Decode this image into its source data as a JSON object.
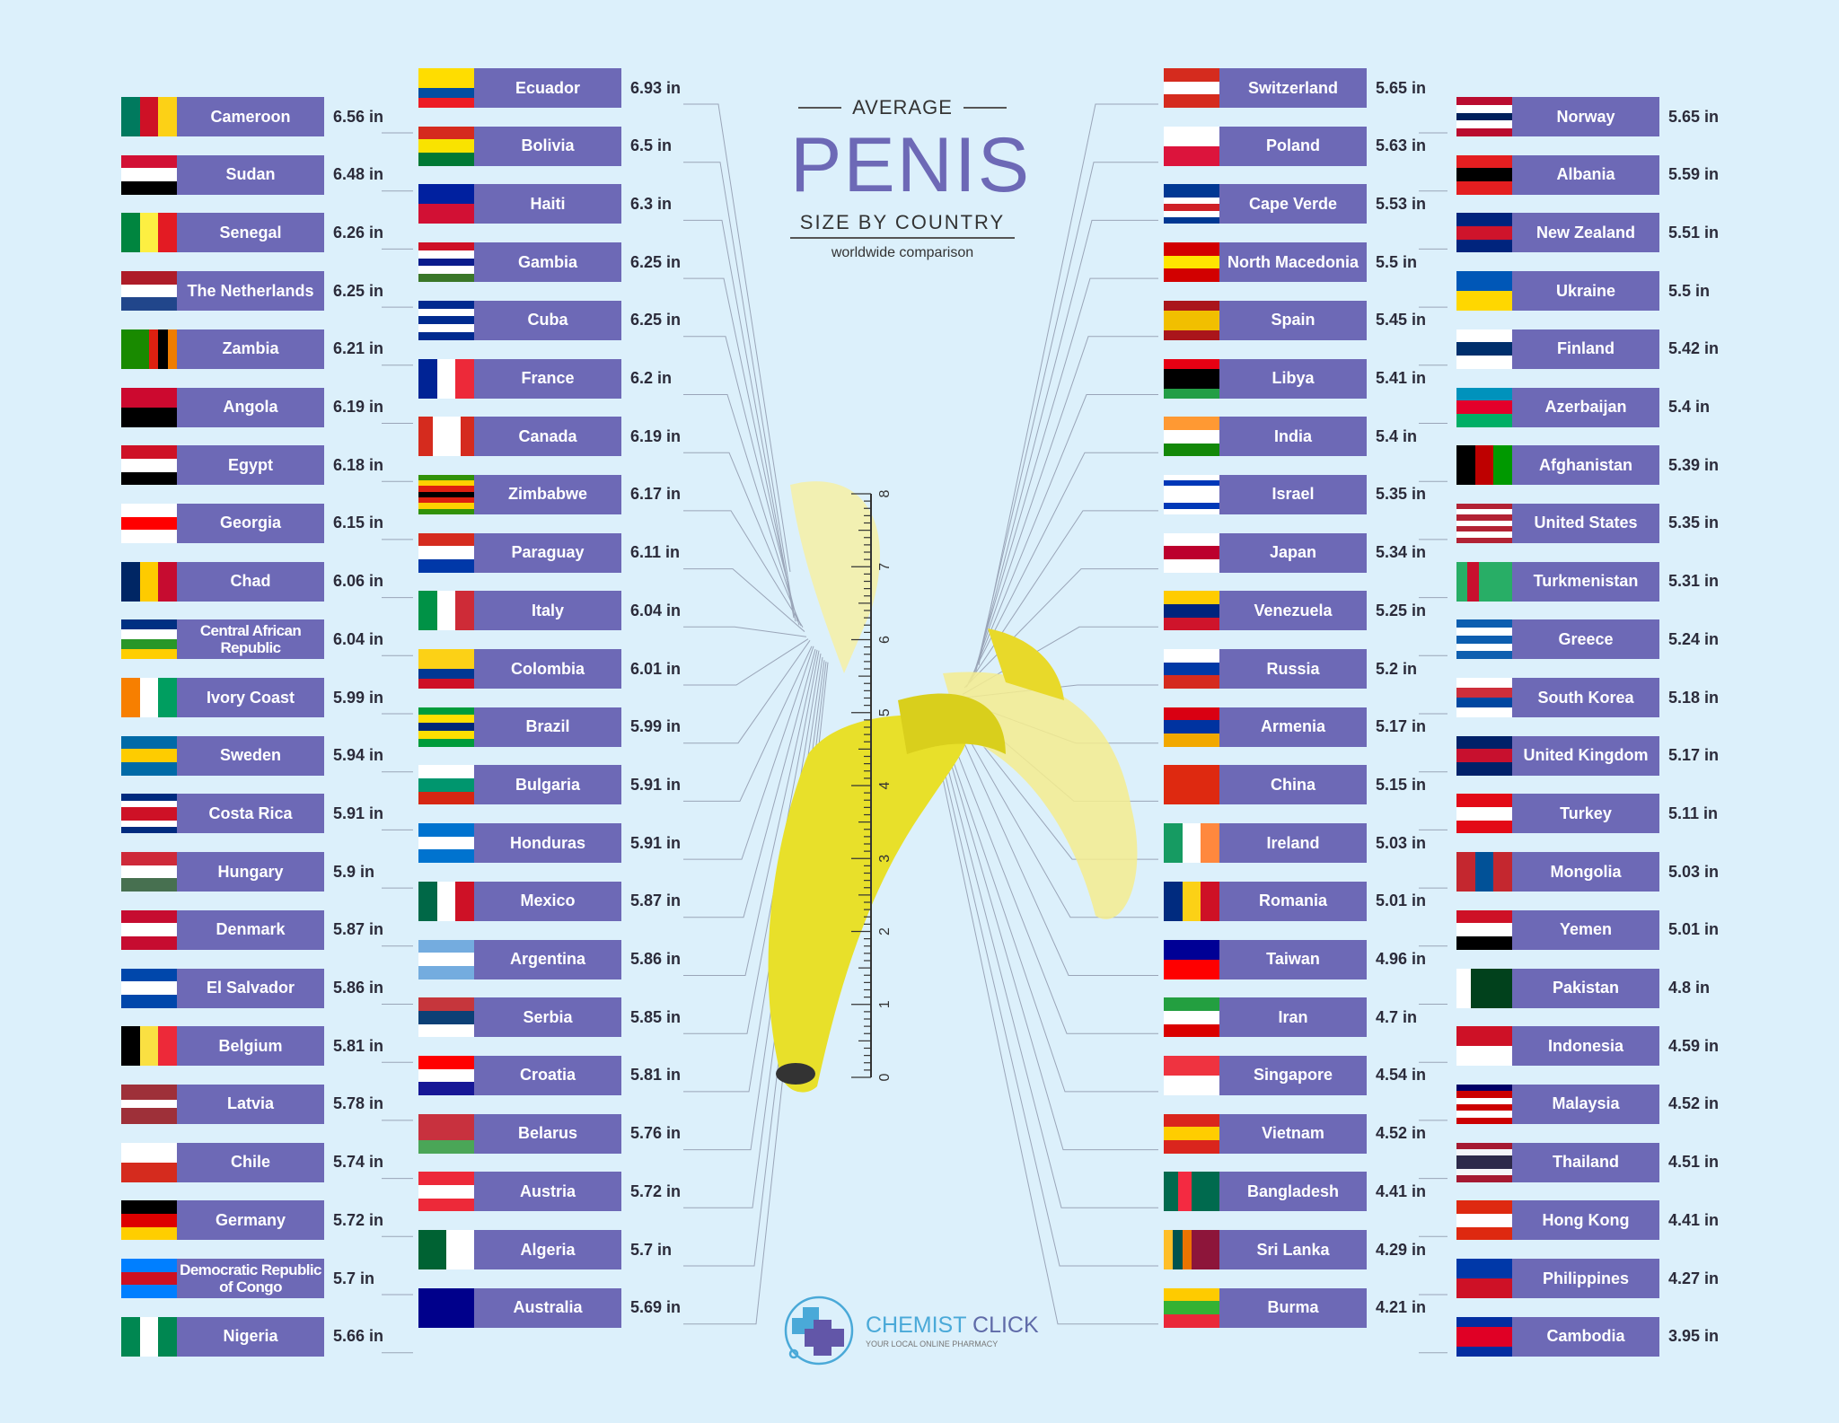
{
  "title": {
    "top": "AVERAGE",
    "main": "PENIS",
    "sub": "SIZE BY COUNTRY",
    "tagline": "worldwide comparison"
  },
  "logo": {
    "name_a": "CHEMIST",
    "name_b": "CLICK",
    "tagline": "YOUR LOCAL ONLINE PHARMACY"
  },
  "colors": {
    "label_box": "#6d69b6",
    "background": "#dcf0fb",
    "banana": "#e8e02a"
  },
  "chart_data": {
    "type": "bar",
    "title": "AVERAGE PENIS SIZE BY COUNTRY",
    "subtitle": "worldwide comparison",
    "unit": "in",
    "ruler_ticks": [
      "0",
      "1",
      "2",
      "3",
      "4",
      "5",
      "6",
      "7",
      "8"
    ],
    "columns": [
      [
        {
          "country": "Cameroon",
          "value": 6.56,
          "flag": "v:#007a5e,#ce1126,#fcd116"
        },
        {
          "country": "Sudan",
          "value": 6.48,
          "flag": "h:#d21034,#ffffff,#000000"
        },
        {
          "country": "Senegal",
          "value": 6.26,
          "flag": "v:#00853f,#fdef42,#e31b23"
        },
        {
          "country": "The Netherlands",
          "value": 6.25,
          "flag": "h:#ae1c28,#ffffff,#21468b"
        },
        {
          "country": "Zambia",
          "value": 6.21,
          "flag": "v:#198a00,#198a00,#198a00,#de2010,#000000,#ef7d00"
        },
        {
          "country": "Angola",
          "value": 6.19,
          "flag": "h:#cc092f,#000000"
        },
        {
          "country": "Egypt",
          "value": 6.18,
          "flag": "h:#ce1126,#ffffff,#000000"
        },
        {
          "country": "Georgia",
          "value": 6.15,
          "flag": "h:#ffffff,#ff0000,#ffffff"
        },
        {
          "country": "Chad",
          "value": 6.06,
          "flag": "v:#002664,#fecb00,#c60c30"
        },
        {
          "country": "Central African Republic",
          "value": 6.04,
          "flag": "h:#003082,#ffffff,#289728,#ffce00"
        },
        {
          "country": "Ivory Coast",
          "value": 5.99,
          "flag": "v:#f77f00,#ffffff,#009e60"
        },
        {
          "country": "Sweden",
          "value": 5.94,
          "flag": "h:#006aa7,#fecc00,#006aa7"
        },
        {
          "country": "Costa Rica",
          "value": 5.91,
          "flag": "h:#002b7f,#ffffff,#ce1126,#ce1126,#ffffff,#002b7f"
        },
        {
          "country": "Hungary",
          "value": 5.9,
          "flag": "h:#ce2939,#ffffff,#477050"
        },
        {
          "country": "Denmark",
          "value": 5.87,
          "flag": "h:#c60c30,#ffffff,#c60c30"
        },
        {
          "country": "El Salvador",
          "value": 5.86,
          "flag": "h:#0047ab,#ffffff,#0047ab"
        },
        {
          "country": "Belgium",
          "value": 5.81,
          "flag": "v:#000000,#fae042,#ed2939"
        },
        {
          "country": "Latvia",
          "value": 5.78,
          "flag": "h:#9e3039,#9e3039,#ffffff,#9e3039,#9e3039"
        },
        {
          "country": "Chile",
          "value": 5.74,
          "flag": "h:#ffffff,#d52b1e"
        },
        {
          "country": "Germany",
          "value": 5.72,
          "flag": "h:#000000,#dd0000,#ffce00"
        },
        {
          "country": "Democratic Republic of Congo",
          "value": 5.7,
          "flag": "h:#007fff,#ce1021,#007fff"
        },
        {
          "country": "Nigeria",
          "value": 5.66,
          "flag": "v:#008751,#ffffff,#008751"
        }
      ],
      [
        {
          "country": "Ecuador",
          "value": 6.93,
          "flag": "h:#ffdd00,#ffdd00,#034ea2,#ed1c24"
        },
        {
          "country": "Bolivia",
          "value": 6.5,
          "flag": "h:#d52b1e,#f9e300,#007934"
        },
        {
          "country": "Haiti",
          "value": 6.3,
          "flag": "h:#00209f,#d21034"
        },
        {
          "country": "Gambia",
          "value": 6.25,
          "flag": "h:#ce1126,#ffffff,#0c1c8c,#ffffff,#3a7728"
        },
        {
          "country": "Cuba",
          "value": 6.25,
          "flag": "h:#002a8f,#ffffff,#002a8f,#ffffff,#002a8f"
        },
        {
          "country": "France",
          "value": 6.2,
          "flag": "v:#002395,#ffffff,#ed2939"
        },
        {
          "country": "Canada",
          "value": 6.19,
          "flag": "v:#d52b1e,#ffffff,#ffffff,#d52b1e"
        },
        {
          "country": "Zimbabwe",
          "value": 6.17,
          "flag": "h:#319208,#ffd200,#de2010,#000000,#de2010,#ffd200,#319208"
        },
        {
          "country": "Paraguay",
          "value": 6.11,
          "flag": "h:#d52b1e,#ffffff,#0038a8"
        },
        {
          "country": "Italy",
          "value": 6.04,
          "flag": "v:#009246,#ffffff,#ce2b37"
        },
        {
          "country": "Colombia",
          "value": 6.01,
          "flag": "h:#fcd116,#fcd116,#003893,#ce1126"
        },
        {
          "country": "Brazil",
          "value": 5.99,
          "flag": "h:#009c3b,#ffdf00,#002776,#ffdf00,#009c3b"
        },
        {
          "country": "Bulgaria",
          "value": 5.91,
          "flag": "h:#ffffff,#00966e,#d62612"
        },
        {
          "country": "Honduras",
          "value": 5.91,
          "flag": "h:#0073cf,#ffffff,#0073cf"
        },
        {
          "country": "Mexico",
          "value": 5.87,
          "flag": "v:#006847,#ffffff,#ce1126"
        },
        {
          "country": "Argentina",
          "value": 5.86,
          "flag": "h:#74acdf,#ffffff,#74acdf"
        },
        {
          "country": "Serbia",
          "value": 5.85,
          "flag": "h:#c6363c,#0c4076,#ffffff"
        },
        {
          "country": "Croatia",
          "value": 5.81,
          "flag": "h:#ff0000,#ffffff,#171796"
        },
        {
          "country": "Belarus",
          "value": 5.76,
          "flag": "h:#c8313e,#c8313e,#4aa657"
        },
        {
          "country": "Austria",
          "value": 5.72,
          "flag": "h:#ed2939,#ffffff,#ed2939"
        },
        {
          "country": "Algeria",
          "value": 5.7,
          "flag": "v:#006233,#ffffff"
        },
        {
          "country": "Australia",
          "value": 5.69,
          "flag": "h:#00008b,#00008b"
        }
      ],
      [
        {
          "country": "Switzerland",
          "value": 5.65,
          "flag": "h:#d52b1e,#ffffff,#d52b1e"
        },
        {
          "country": "Poland",
          "value": 5.63,
          "flag": "h:#ffffff,#dc143c"
        },
        {
          "country": "Cape Verde",
          "value": 5.53,
          "flag": "h:#003893,#003893,#ffffff,#cf2027,#ffffff,#003893"
        },
        {
          "country": "North Macedonia",
          "value": 5.5,
          "flag": "h:#d20000,#ffe600,#d20000"
        },
        {
          "country": "Spain",
          "value": 5.45,
          "flag": "h:#aa151b,#f1bf00,#f1bf00,#aa151b"
        },
        {
          "country": "Libya",
          "value": 5.41,
          "flag": "h:#e70013,#000000,#000000,#239e46"
        },
        {
          "country": "India",
          "value": 5.4,
          "flag": "h:#ff9933,#ffffff,#138808"
        },
        {
          "country": "Israel",
          "value": 5.35,
          "flag": "h:#ffffff,#0038b8,#ffffff,#ffffff,#ffffff,#0038b8,#ffffff"
        },
        {
          "country": "Japan",
          "value": 5.34,
          "flag": "h:#ffffff,#bc002d,#ffffff"
        },
        {
          "country": "Venezuela",
          "value": 5.25,
          "flag": "h:#ffcc00,#00247d,#cf142b"
        },
        {
          "country": "Russia",
          "value": 5.2,
          "flag": "h:#ffffff,#0039a6,#d52b1e"
        },
        {
          "country": "Armenia",
          "value": 5.17,
          "flag": "h:#d90012,#0033a0,#f2a800"
        },
        {
          "country": "China",
          "value": 5.15,
          "flag": "h:#de2910,#de2910"
        },
        {
          "country": "Ireland",
          "value": 5.03,
          "flag": "v:#169b62,#ffffff,#ff883e"
        },
        {
          "country": "Romania",
          "value": 5.01,
          "flag": "v:#002b7f,#fcd116,#ce1126"
        },
        {
          "country": "Taiwan",
          "value": 4.96,
          "flag": "h:#000095,#fe0000"
        },
        {
          "country": "Iran",
          "value": 4.7,
          "flag": "h:#239f40,#ffffff,#da0000"
        },
        {
          "country": "Singapore",
          "value": 4.54,
          "flag": "h:#ef3340,#ffffff"
        },
        {
          "country": "Vietnam",
          "value": 4.52,
          "flag": "h:#da251d,#ffcd00,#da251d"
        },
        {
          "country": "Bangladesh",
          "value": 4.41,
          "flag": "v:#006a4e,#f42a41,#006a4e,#006a4e"
        },
        {
          "country": "Sri Lanka",
          "value": 4.29,
          "flag": "v:#ffbe29,#00534e,#eb7400,#8d153a,#8d153a,#8d153a"
        },
        {
          "country": "Burma",
          "value": 4.21,
          "flag": "h:#fecb00,#34b233,#ea2839"
        }
      ],
      [
        {
          "country": "Norway",
          "value": 5.65,
          "flag": "h:#ba0c2f,#ffffff,#00205b,#ffffff,#ba0c2f"
        },
        {
          "country": "Albania",
          "value": 5.59,
          "flag": "h:#e41e20,#000000,#e41e20"
        },
        {
          "country": "New Zealand",
          "value": 5.51,
          "flag": "h:#00247d,#cf142b,#00247d"
        },
        {
          "country": "Ukraine",
          "value": 5.5,
          "flag": "h:#0057b7,#ffd700"
        },
        {
          "country": "Finland",
          "value": 5.42,
          "flag": "h:#ffffff,#002f6c,#ffffff"
        },
        {
          "country": "Azerbaijan",
          "value": 5.4,
          "flag": "h:#0092bc,#e4002b,#00af66"
        },
        {
          "country": "Afghanistan",
          "value": 5.39,
          "flag": "v:#000000,#be0000,#009900"
        },
        {
          "country": "United States",
          "value": 5.35,
          "flag": "h:#b22234,#ffffff,#b22234,#ffffff,#b22234,#ffffff,#b22234"
        },
        {
          "country": "Turkmenistan",
          "value": 5.31,
          "flag": "v:#28ae66,#c8102e,#28ae66,#28ae66,#28ae66"
        },
        {
          "country": "Greece",
          "value": 5.24,
          "flag": "h:#0d5eaf,#ffffff,#0d5eaf,#ffffff,#0d5eaf"
        },
        {
          "country": "South Korea",
          "value": 5.18,
          "flag": "h:#ffffff,#cd2e3a,#0047a0,#ffffff"
        },
        {
          "country": "United Kingdom",
          "value": 5.17,
          "flag": "h:#012169,#c8102e,#012169"
        },
        {
          "country": "Turkey",
          "value": 5.11,
          "flag": "h:#e30a17,#ffffff,#e30a17"
        },
        {
          "country": "Mongolia",
          "value": 5.03,
          "flag": "v:#c4272f,#015197,#c4272f"
        },
        {
          "country": "Yemen",
          "value": 5.01,
          "flag": "h:#ce1126,#ffffff,#000000"
        },
        {
          "country": "Pakistan",
          "value": 4.8,
          "flag": "v:#ffffff,#01411c,#01411c,#01411c"
        },
        {
          "country": "Indonesia",
          "value": 4.59,
          "flag": "h:#ce1126,#ffffff"
        },
        {
          "country": "Malaysia",
          "value": 4.52,
          "flag": "h:#010066,#cc0001,#ffffff,#cc0001,#ffffff,#cc0001"
        },
        {
          "country": "Thailand",
          "value": 4.51,
          "flag": "h:#a51931,#f4f5f8,#2d2a4a,#2d2a4a,#f4f5f8,#a51931"
        },
        {
          "country": "Hong Kong",
          "value": 4.41,
          "flag": "h:#de2910,#ffffff,#de2910"
        },
        {
          "country": "Philippines",
          "value": 4.27,
          "flag": "h:#0038a8,#ce1126"
        },
        {
          "country": "Cambodia",
          "value": 3.95,
          "flag": "h:#032ea1,#e00025,#e00025,#032ea1"
        }
      ]
    ]
  }
}
